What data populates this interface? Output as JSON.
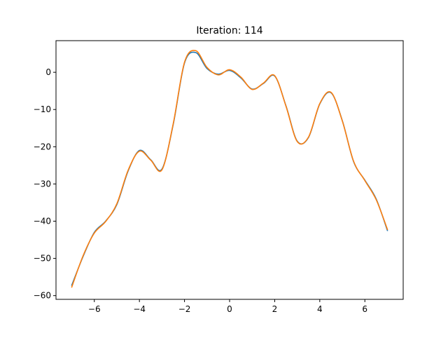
{
  "chart_data": {
    "type": "line",
    "title": "Iteration: 114",
    "xlabel": "",
    "ylabel": "",
    "xlim": [
      -7.7,
      7.7
    ],
    "ylim": [
      -61,
      8.5
    ],
    "xticks": [
      -6,
      -4,
      -2,
      0,
      2,
      4,
      6
    ],
    "yticks": [
      -60,
      -50,
      -40,
      -30,
      -20,
      -10,
      0
    ],
    "xtick_labels": [
      "−6",
      "−4",
      "−2",
      "0",
      "2",
      "4",
      "6"
    ],
    "ytick_labels": [
      "−60",
      "−50",
      "−40",
      "−30",
      "−20",
      "−10",
      "0"
    ],
    "grid": false,
    "series": [
      {
        "color": "#1f77b4",
        "x": [
          -7.0,
          -6.5,
          -6.0,
          -5.5,
          -5.0,
          -4.5,
          -4.0,
          -3.5,
          -3.0,
          -2.5,
          -2.0,
          -1.5,
          -1.0,
          -0.5,
          0.0,
          0.5,
          1.0,
          1.5,
          2.0,
          2.5,
          3.0,
          3.5,
          4.0,
          4.5,
          5.0,
          5.5,
          6.0,
          6.5,
          7.0
        ],
        "y": [
          -57.2,
          -49.5,
          -43.0,
          -40.0,
          -35.5,
          -26.5,
          -21.0,
          -23.5,
          -26.0,
          -14.0,
          2.5,
          5.3,
          1.0,
          -0.5,
          0.5,
          -1.5,
          -4.5,
          -3.0,
          -1.0,
          -9.0,
          -18.5,
          -17.5,
          -8.5,
          -5.5,
          -13.0,
          -24.0,
          -29.0,
          -34.0,
          -42.5
        ]
      },
      {
        "color": "#ff7f0e",
        "x": [
          -7.0,
          -6.5,
          -6.0,
          -5.5,
          -5.0,
          -4.5,
          -4.0,
          -3.5,
          -3.0,
          -2.5,
          -2.0,
          -1.5,
          -1.0,
          -0.5,
          0.0,
          0.5,
          1.0,
          1.5,
          2.0,
          2.5,
          3.0,
          3.5,
          4.0,
          4.5,
          5.0,
          5.5,
          6.0,
          6.5,
          7.0
        ],
        "y": [
          -57.7,
          -49.3,
          -43.2,
          -40.1,
          -35.3,
          -26.3,
          -21.2,
          -23.6,
          -26.2,
          -13.8,
          2.7,
          5.8,
          1.3,
          -0.7,
          0.7,
          -1.3,
          -4.6,
          -2.9,
          -0.9,
          -9.1,
          -18.6,
          -17.4,
          -8.4,
          -5.4,
          -13.1,
          -23.9,
          -29.1,
          -34.2,
          -42.2
        ]
      }
    ]
  }
}
